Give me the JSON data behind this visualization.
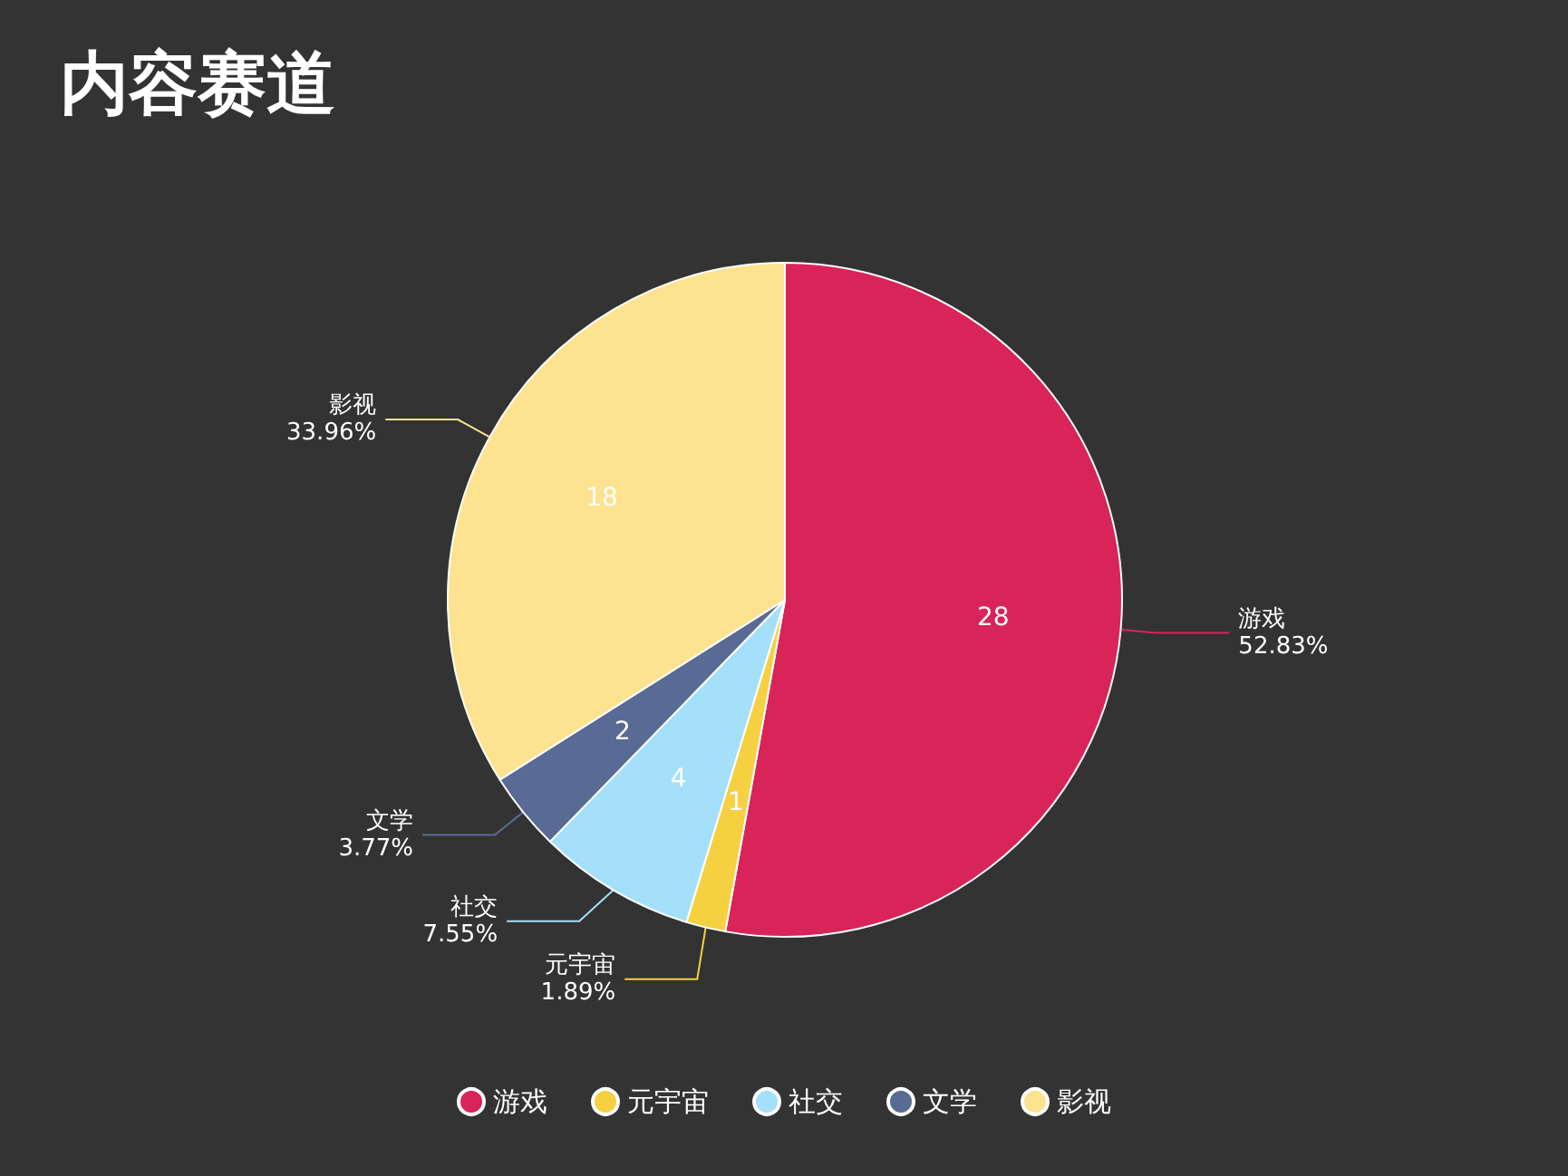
{
  "chart_data": {
    "type": "pie",
    "title": "内容赛道",
    "categories": [
      "游戏",
      "元宇宙",
      "社交",
      "文学",
      "影视"
    ],
    "values": [
      28,
      1,
      4,
      2,
      18
    ],
    "colors": [
      "#d9245a",
      "#f5d142",
      "#a5e0fa",
      "#596b94",
      "#fde38f"
    ],
    "annotations": [
      "52.83%",
      "1.89%",
      "7.55%",
      "3.77%",
      "33.96%"
    ],
    "data_labels": true,
    "legend": "bottom"
  }
}
